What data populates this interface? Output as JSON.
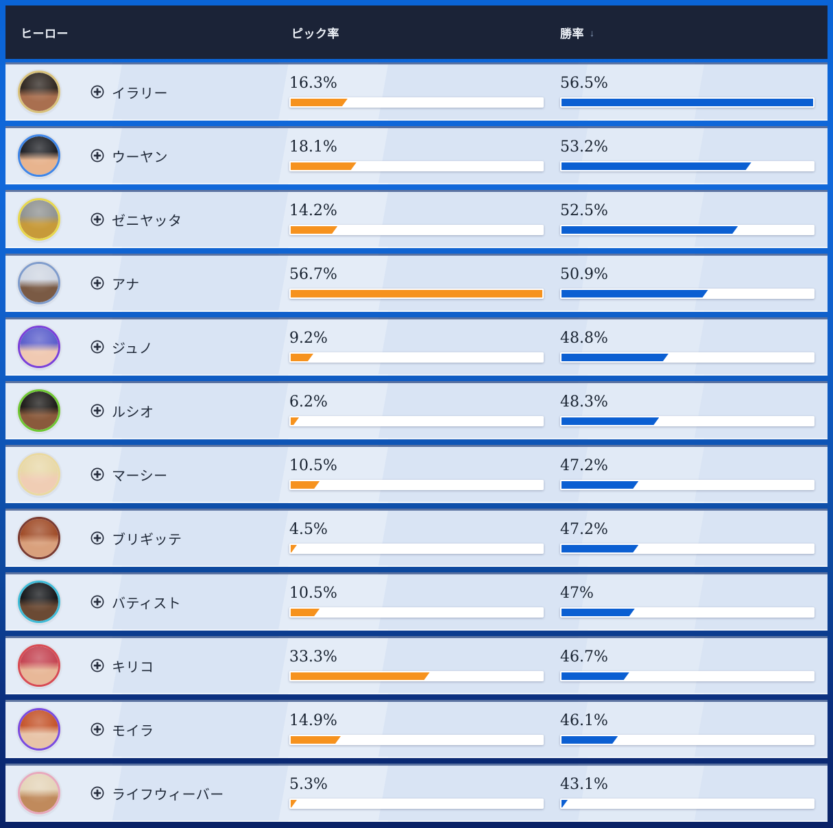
{
  "table": {
    "columns": {
      "hero": "ヒーロー",
      "pick": "ピック率",
      "win": "勝率"
    },
    "sort": {
      "column": "win",
      "direction": "desc",
      "icon": "↓"
    }
  },
  "colors": {
    "pick_bar": "#f6921e",
    "win_bar": "#0b5fd2",
    "header_bg": "#1b2337",
    "row_bg": "#d9e4f4",
    "page_top": "#0a64d6",
    "page_bottom": "#0a2266"
  },
  "heroes": [
    {
      "name": "イラリー",
      "pick": "16.3%",
      "win": "56.5%",
      "pick_bar_pct": 22.6,
      "win_bar_pct": 100,
      "avatar": {
        "ring": "#d9c27a",
        "hair": "#2e2620",
        "skin": "#a96f4f"
      }
    },
    {
      "name": "ウーヤン",
      "pick": "18.1%",
      "win": "53.2%",
      "pick_bar_pct": 26.1,
      "win_bar_pct": 75.4,
      "avatar": {
        "ring": "#3f86e8",
        "hair": "#1f2126",
        "skin": "#e8b48e"
      }
    },
    {
      "name": "ゼニヤッタ",
      "pick": "14.2%",
      "win": "52.5%",
      "pick_bar_pct": 18.6,
      "win_bar_pct": 70.1,
      "avatar": {
        "ring": "#e8d84d",
        "hair": "#8f9291",
        "skin": "#c79a3a"
      }
    },
    {
      "name": "アナ",
      "pick": "56.7%",
      "win": "50.9%",
      "pick_bar_pct": 100,
      "win_bar_pct": 58.2,
      "avatar": {
        "ring": "#7f9ccc",
        "hair": "#cfd6e2",
        "skin": "#7a5a44"
      }
    },
    {
      "name": "ジュノ",
      "pick": "9.2%",
      "win": "48.8%",
      "pick_bar_pct": 9.0,
      "win_bar_pct": 42.5,
      "avatar": {
        "ring": "#7a3fd9",
        "hair": "#5a5ecb",
        "skin": "#f0c9b2"
      }
    },
    {
      "name": "ルシオ",
      "pick": "6.2%",
      "win": "48.3%",
      "pick_bar_pct": 3.3,
      "win_bar_pct": 38.8,
      "avatar": {
        "ring": "#6fc832",
        "hair": "#1c1a18",
        "skin": "#8a5a3c"
      }
    },
    {
      "name": "マーシー",
      "pick": "10.5%",
      "win": "47.2%",
      "pick_bar_pct": 11.5,
      "win_bar_pct": 30.6,
      "avatar": {
        "ring": "#ead9a0",
        "hair": "#e8d8a8",
        "skin": "#f0cdb4"
      }
    },
    {
      "name": "ブリギッテ",
      "pick": "4.5%",
      "win": "47.2%",
      "pick_bar_pct": 1.0,
      "win_bar_pct": 30.6,
      "avatar": {
        "ring": "#7a3a30",
        "hair": "#a04c28",
        "skin": "#d9a07c"
      }
    },
    {
      "name": "バティスト",
      "pick": "10.5%",
      "win": "47%",
      "pick_bar_pct": 11.5,
      "win_bar_pct": 29.1,
      "avatar": {
        "ring": "#3fbcd8",
        "hair": "#15171a",
        "skin": "#6b4a34"
      }
    },
    {
      "name": "キリコ",
      "pick": "33.3%",
      "win": "46.7%",
      "pick_bar_pct": 55.2,
      "win_bar_pct": 26.9,
      "avatar": {
        "ring": "#d84a52",
        "hair": "#c44452",
        "skin": "#e8b898"
      }
    },
    {
      "name": "モイラ",
      "pick": "14.9%",
      "win": "46.1%",
      "pick_bar_pct": 19.9,
      "win_bar_pct": 22.4,
      "avatar": {
        "ring": "#7a4ae0",
        "hair": "#c4542a",
        "skin": "#e8c4a8"
      }
    },
    {
      "name": "ライフウィーバー",
      "pick": "5.3%",
      "win": "43.1%",
      "pick_bar_pct": 1.5,
      "win_bar_pct": 1.0,
      "avatar": {
        "ring": "#e8a8bc",
        "hair": "#e4d4b8",
        "skin": "#c08a5c"
      }
    }
  ]
}
